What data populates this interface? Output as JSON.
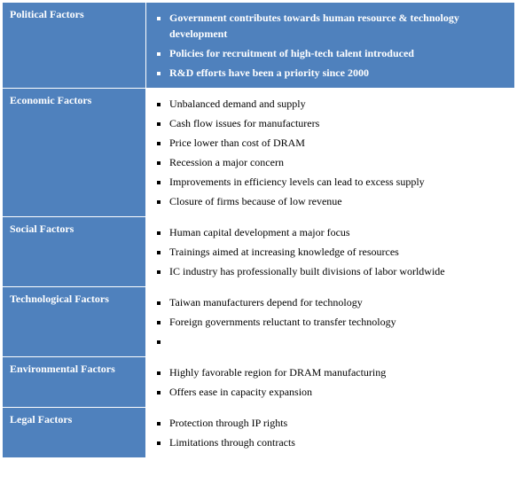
{
  "rows": [
    {
      "label": "Political Factors",
      "highlight": true,
      "items": [
        "Government contributes towards human resource & technology development",
        "Policies for recruitment of high-tech talent introduced",
        "R&D efforts have been a priority since 2000"
      ]
    },
    {
      "label": "Economic Factors",
      "highlight": false,
      "items": [
        "Unbalanced demand and supply",
        "Cash flow issues for manufacturers",
        "Price lower than cost of DRAM",
        "Recession a major concern",
        "Improvements in efficiency levels can lead to excess supply",
        "Closure of firms because of low revenue"
      ]
    },
    {
      "label": "Social Factors",
      "highlight": false,
      "items": [
        "Human capital development a major focus",
        " Trainings aimed at increasing knowledge of resources",
        "IC industry has professionally built divisions of labor worldwide"
      ]
    },
    {
      "label": "Technological Factors",
      "highlight": false,
      "items": [
        "Taiwan manufacturers depend for technology",
        "Foreign governments reluctant to transfer technology",
        ""
      ]
    },
    {
      "label": "Environmental Factors",
      "highlight": false,
      "items": [
        "Highly favorable region for DRAM manufacturing",
        "Offers ease in capacity expansion"
      ]
    },
    {
      "label": "Legal Factors",
      "highlight": false,
      "items": [
        "Protection through IP rights",
        "Limitations through contracts"
      ]
    }
  ],
  "colors": {
    "label_bg": "#4f81bd",
    "highlight_bg": "#4f81bd",
    "text_light": "#ffffff",
    "text_dark": "#000000"
  }
}
